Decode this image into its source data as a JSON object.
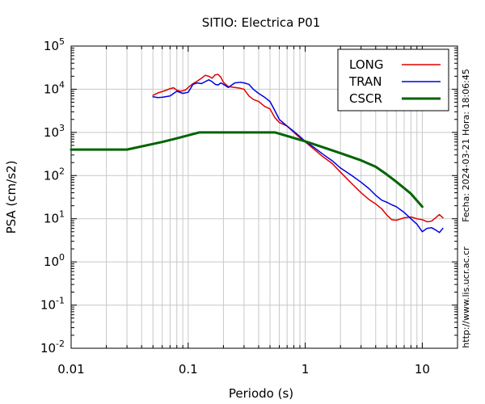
{
  "chart_data": {
    "type": "line",
    "title": "SITIO: Electrica P01",
    "xlabel": "Periodo (s)",
    "ylabel": "PSA (cm/s2)",
    "xscale": "log",
    "yscale": "log",
    "xlim": [
      0.01,
      20
    ],
    "ylim": [
      0.01,
      100000
    ],
    "grid": true,
    "legend_position": "top-right",
    "x_ticks": [
      {
        "value": 0.01,
        "label": "0.01"
      },
      {
        "value": 0.1,
        "label": "0.1"
      },
      {
        "value": 1,
        "label": "1"
      },
      {
        "value": 10,
        "label": "10"
      }
    ],
    "y_ticks": [
      {
        "value": 0.01,
        "base": "10",
        "exp": "-2"
      },
      {
        "value": 0.1,
        "base": "10",
        "exp": "-1"
      },
      {
        "value": 1,
        "base": "10",
        "exp": "0"
      },
      {
        "value": 10,
        "base": "10",
        "exp": "1"
      },
      {
        "value": 100,
        "base": "10",
        "exp": "2"
      },
      {
        "value": 1000,
        "base": "10",
        "exp": "3"
      },
      {
        "value": 10000,
        "base": "10",
        "exp": "4"
      },
      {
        "value": 100000,
        "base": "10",
        "exp": "5"
      }
    ],
    "side_texts": {
      "date": "Fecha: 2024-03-21 Hora: 18:06:45",
      "url": "http://www.lis.ucr.ac.cr"
    },
    "series": [
      {
        "name": "LONG",
        "color": "#e00000",
        "width": 1.5,
        "points": [
          [
            0.05,
            7200
          ],
          [
            0.055,
            8200
          ],
          [
            0.06,
            8800
          ],
          [
            0.065,
            9500
          ],
          [
            0.07,
            10300
          ],
          [
            0.075,
            10800
          ],
          [
            0.08,
            9500
          ],
          [
            0.085,
            9000
          ],
          [
            0.09,
            9200
          ],
          [
            0.095,
            9600
          ],
          [
            0.1,
            11000
          ],
          [
            0.11,
            13500
          ],
          [
            0.12,
            15500
          ],
          [
            0.13,
            18000
          ],
          [
            0.14,
            21000
          ],
          [
            0.15,
            20000
          ],
          [
            0.16,
            18000
          ],
          [
            0.17,
            21500
          ],
          [
            0.18,
            22000
          ],
          [
            0.19,
            19000
          ],
          [
            0.2,
            14500
          ],
          [
            0.22,
            11500
          ],
          [
            0.25,
            11000
          ],
          [
            0.28,
            10500
          ],
          [
            0.3,
            10000
          ],
          [
            0.33,
            7000
          ],
          [
            0.36,
            5800
          ],
          [
            0.4,
            5200
          ],
          [
            0.45,
            4000
          ],
          [
            0.5,
            3500
          ],
          [
            0.55,
            2200
          ],
          [
            0.6,
            1700
          ],
          [
            0.7,
            1400
          ],
          [
            0.8,
            1000
          ],
          [
            0.9,
            750
          ],
          [
            1.0,
            600
          ],
          [
            1.2,
            400
          ],
          [
            1.4,
            280
          ],
          [
            1.7,
            190
          ],
          [
            2.0,
            120
          ],
          [
            2.5,
            65
          ],
          [
            3.0,
            40
          ],
          [
            3.5,
            28
          ],
          [
            4.0,
            22
          ],
          [
            4.5,
            17
          ],
          [
            5.0,
            12
          ],
          [
            5.5,
            9.5
          ],
          [
            6.0,
            9.2
          ],
          [
            7.0,
            10.5
          ],
          [
            8.0,
            11
          ],
          [
            9.0,
            10
          ],
          [
            10.0,
            9.5
          ],
          [
            11.0,
            8.5
          ],
          [
            12.0,
            8.8
          ],
          [
            13.0,
            10.5
          ],
          [
            14.0,
            12.5
          ],
          [
            15.0,
            10.5
          ]
        ]
      },
      {
        "name": "TRAN",
        "color": "#0000e0",
        "width": 1.5,
        "points": [
          [
            0.05,
            6700
          ],
          [
            0.055,
            6400
          ],
          [
            0.06,
            6500
          ],
          [
            0.07,
            7000
          ],
          [
            0.08,
            9000
          ],
          [
            0.09,
            8000
          ],
          [
            0.1,
            8500
          ],
          [
            0.11,
            13000
          ],
          [
            0.12,
            14000
          ],
          [
            0.13,
            13500
          ],
          [
            0.14,
            15000
          ],
          [
            0.15,
            16500
          ],
          [
            0.16,
            15000
          ],
          [
            0.17,
            13000
          ],
          [
            0.18,
            12500
          ],
          [
            0.19,
            14000
          ],
          [
            0.2,
            13000
          ],
          [
            0.22,
            11000
          ],
          [
            0.25,
            14000
          ],
          [
            0.28,
            14500
          ],
          [
            0.3,
            14000
          ],
          [
            0.33,
            13000
          ],
          [
            0.36,
            10000
          ],
          [
            0.4,
            8000
          ],
          [
            0.45,
            6500
          ],
          [
            0.5,
            5200
          ],
          [
            0.55,
            3200
          ],
          [
            0.6,
            2000
          ],
          [
            0.7,
            1400
          ],
          [
            0.8,
            1050
          ],
          [
            0.9,
            800
          ],
          [
            1.0,
            620
          ],
          [
            1.2,
            440
          ],
          [
            1.4,
            320
          ],
          [
            1.7,
            220
          ],
          [
            2.0,
            150
          ],
          [
            2.5,
            100
          ],
          [
            3.0,
            70
          ],
          [
            3.5,
            50
          ],
          [
            4.0,
            35
          ],
          [
            4.5,
            27
          ],
          [
            5.0,
            24
          ],
          [
            5.5,
            21
          ],
          [
            6.0,
            19
          ],
          [
            7.0,
            14
          ],
          [
            8.0,
            10
          ],
          [
            9.0,
            7.5
          ],
          [
            10.0,
            5
          ],
          [
            11.0,
            6
          ],
          [
            12.0,
            6.2
          ],
          [
            13.0,
            5.5
          ],
          [
            14.0,
            4.8
          ],
          [
            15.0,
            6
          ]
        ]
      },
      {
        "name": "CSCR",
        "color": "#006400",
        "width": 3,
        "points": [
          [
            0.01,
            400
          ],
          [
            0.03,
            400
          ],
          [
            0.06,
            600
          ],
          [
            0.08,
            730
          ],
          [
            0.125,
            1000
          ],
          [
            0.4,
            1000
          ],
          [
            0.55,
            1000
          ],
          [
            1.0,
            620
          ],
          [
            1.5,
            430
          ],
          [
            2.0,
            330
          ],
          [
            3.0,
            225
          ],
          [
            4.0,
            160
          ],
          [
            5.0,
            105
          ],
          [
            6.0,
            72
          ],
          [
            8.0,
            38
          ],
          [
            10.0,
            19
          ]
        ]
      }
    ]
  }
}
